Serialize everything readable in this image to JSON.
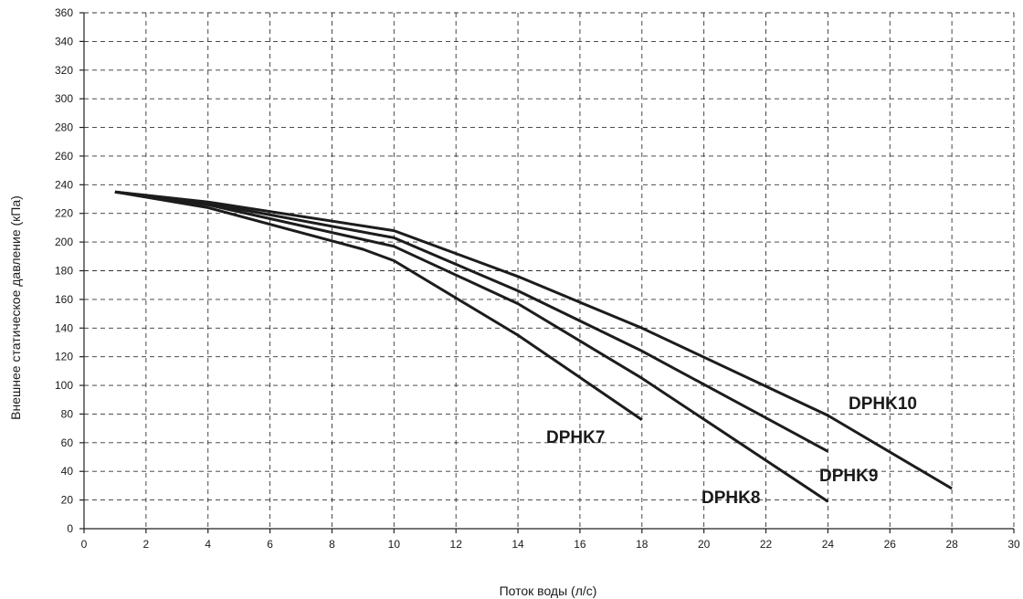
{
  "chart_data": {
    "type": "line",
    "title": "",
    "xlabel": "Поток воды (л/с)",
    "ylabel": "Внешнее статическое давление (кПа)",
    "xlim": [
      0,
      30
    ],
    "ylim": [
      0,
      360
    ],
    "x_ticks": [
      0,
      2,
      4,
      6,
      8,
      10,
      12,
      14,
      16,
      18,
      20,
      22,
      24,
      26,
      28,
      30
    ],
    "y_ticks": [
      0,
      20,
      40,
      60,
      80,
      100,
      120,
      140,
      160,
      180,
      200,
      220,
      240,
      260,
      280,
      300,
      320,
      340,
      360
    ],
    "grid": true,
    "legend": "none",
    "series": [
      {
        "name": "DPHK7",
        "x": [
          1,
          4,
          9,
          10,
          14,
          18
        ],
        "y": [
          235,
          224,
          195,
          187,
          135,
          76
        ]
      },
      {
        "name": "DPHK8",
        "x": [
          1,
          4,
          10,
          14,
          18,
          24
        ],
        "y": [
          235,
          226,
          197,
          157,
          105,
          19
        ]
      },
      {
        "name": "DPHK9",
        "x": [
          1,
          4,
          10,
          14,
          18,
          24
        ],
        "y": [
          235,
          227,
          203,
          166,
          124,
          54
        ]
      },
      {
        "name": "DPHK10",
        "x": [
          1,
          4,
          10,
          14,
          18,
          24,
          28
        ],
        "y": [
          235,
          228,
          208,
          176,
          140,
          79,
          28
        ]
      }
    ]
  }
}
